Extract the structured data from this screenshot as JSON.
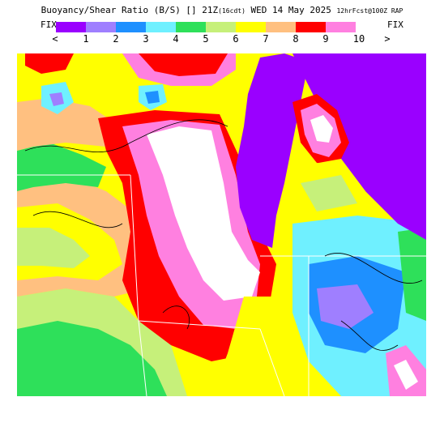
{
  "header": {
    "title_main": "Buoyancy/Shear Ratio (B/S) [] 21Z",
    "title_local": "(16cdt)",
    "title_date": "WED 14 May 2025",
    "title_run": "12hrFcst@100Z RAP"
  },
  "colorbar": {
    "fix_left": "FIX",
    "fix_right": "FIX",
    "less_symbol": "<",
    "greater_symbol": ">",
    "tick_labels": [
      "1",
      "2",
      "3",
      "4",
      "5",
      "6",
      "7",
      "8",
      "9",
      "10"
    ],
    "colors": [
      "#9a00ff",
      "#9f7fff",
      "#1e90ff",
      "#6ff0ff",
      "#2ee05a",
      "#c6f07a",
      "#ffff00",
      "#ffc080",
      "#ff0000",
      "#ff80e0"
    ]
  },
  "map_colors": {
    "ratio_1": "#9a00ff",
    "ratio_2": "#9f7fff",
    "ratio_3": "#1e90ff",
    "ratio_4": "#6ff0ff",
    "ratio_5": "#2ee05a",
    "ratio_6": "#c6f07a",
    "ratio_7": "#ffff00",
    "ratio_8": "#ffc080",
    "ratio_9": "#ff0000",
    "ratio_10": "#ff80e0",
    "above_10": "#ffffff"
  }
}
